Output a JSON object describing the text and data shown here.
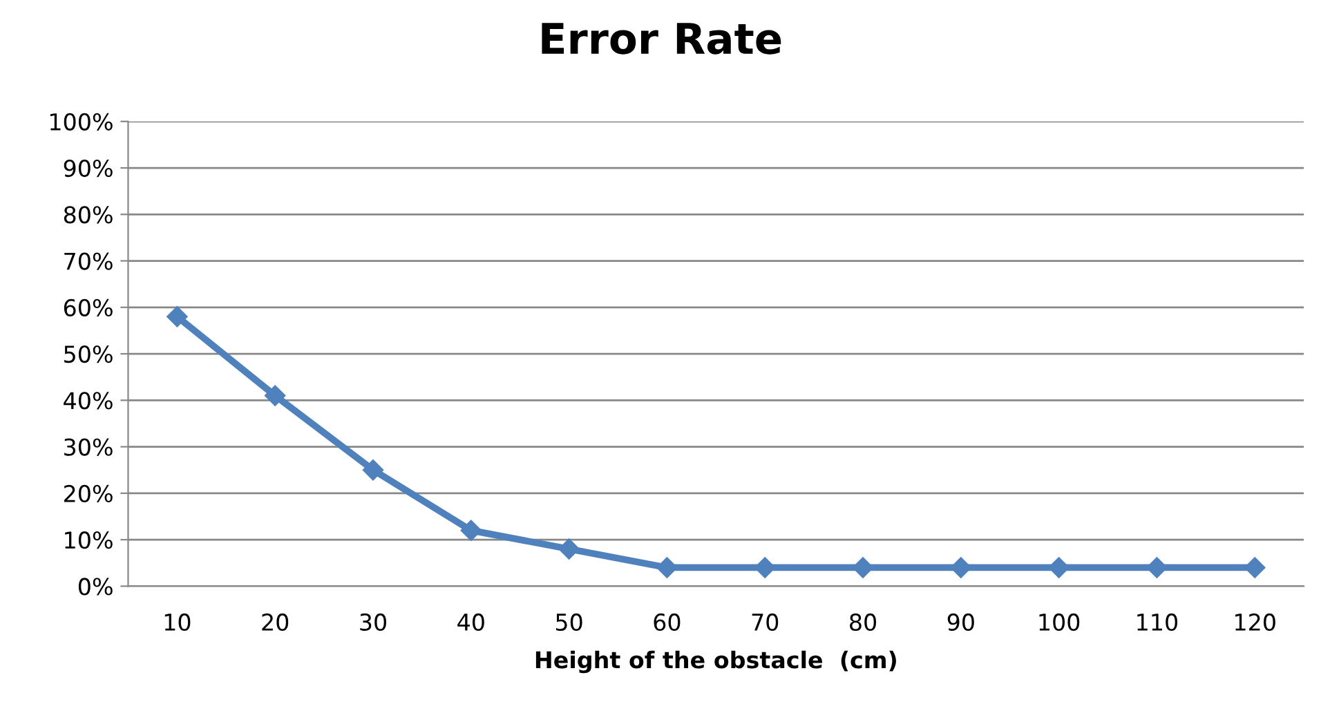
{
  "chart_data": {
    "type": "line",
    "title": "Error Rate",
    "xlabel": "Height of the obstacle  (cm)",
    "categories": [
      "10",
      "20",
      "30",
      "40",
      "50",
      "60",
      "70",
      "80",
      "90",
      "100",
      "110",
      "120"
    ],
    "series": [
      {
        "color": "#4f81bd",
        "values": [
          58,
          41,
          25,
          12,
          8,
          4,
          4,
          4,
          4,
          4,
          4,
          4
        ]
      }
    ],
    "ylim": [
      0,
      100
    ],
    "yticks": [
      {
        "value": 0,
        "label": "0%"
      },
      {
        "value": 10,
        "label": "10%"
      },
      {
        "value": 20,
        "label": "20%"
      },
      {
        "value": 30,
        "label": "30%"
      },
      {
        "value": 40,
        "label": "40%"
      },
      {
        "value": 50,
        "label": "50%"
      },
      {
        "value": 60,
        "label": "60%"
      },
      {
        "value": 70,
        "label": "70%"
      },
      {
        "value": 80,
        "label": "80%"
      },
      {
        "value": 90,
        "label": "90%"
      },
      {
        "value": 100,
        "label": "100%"
      }
    ],
    "grid": "y",
    "marker": "diamond",
    "line_style": "solid"
  }
}
